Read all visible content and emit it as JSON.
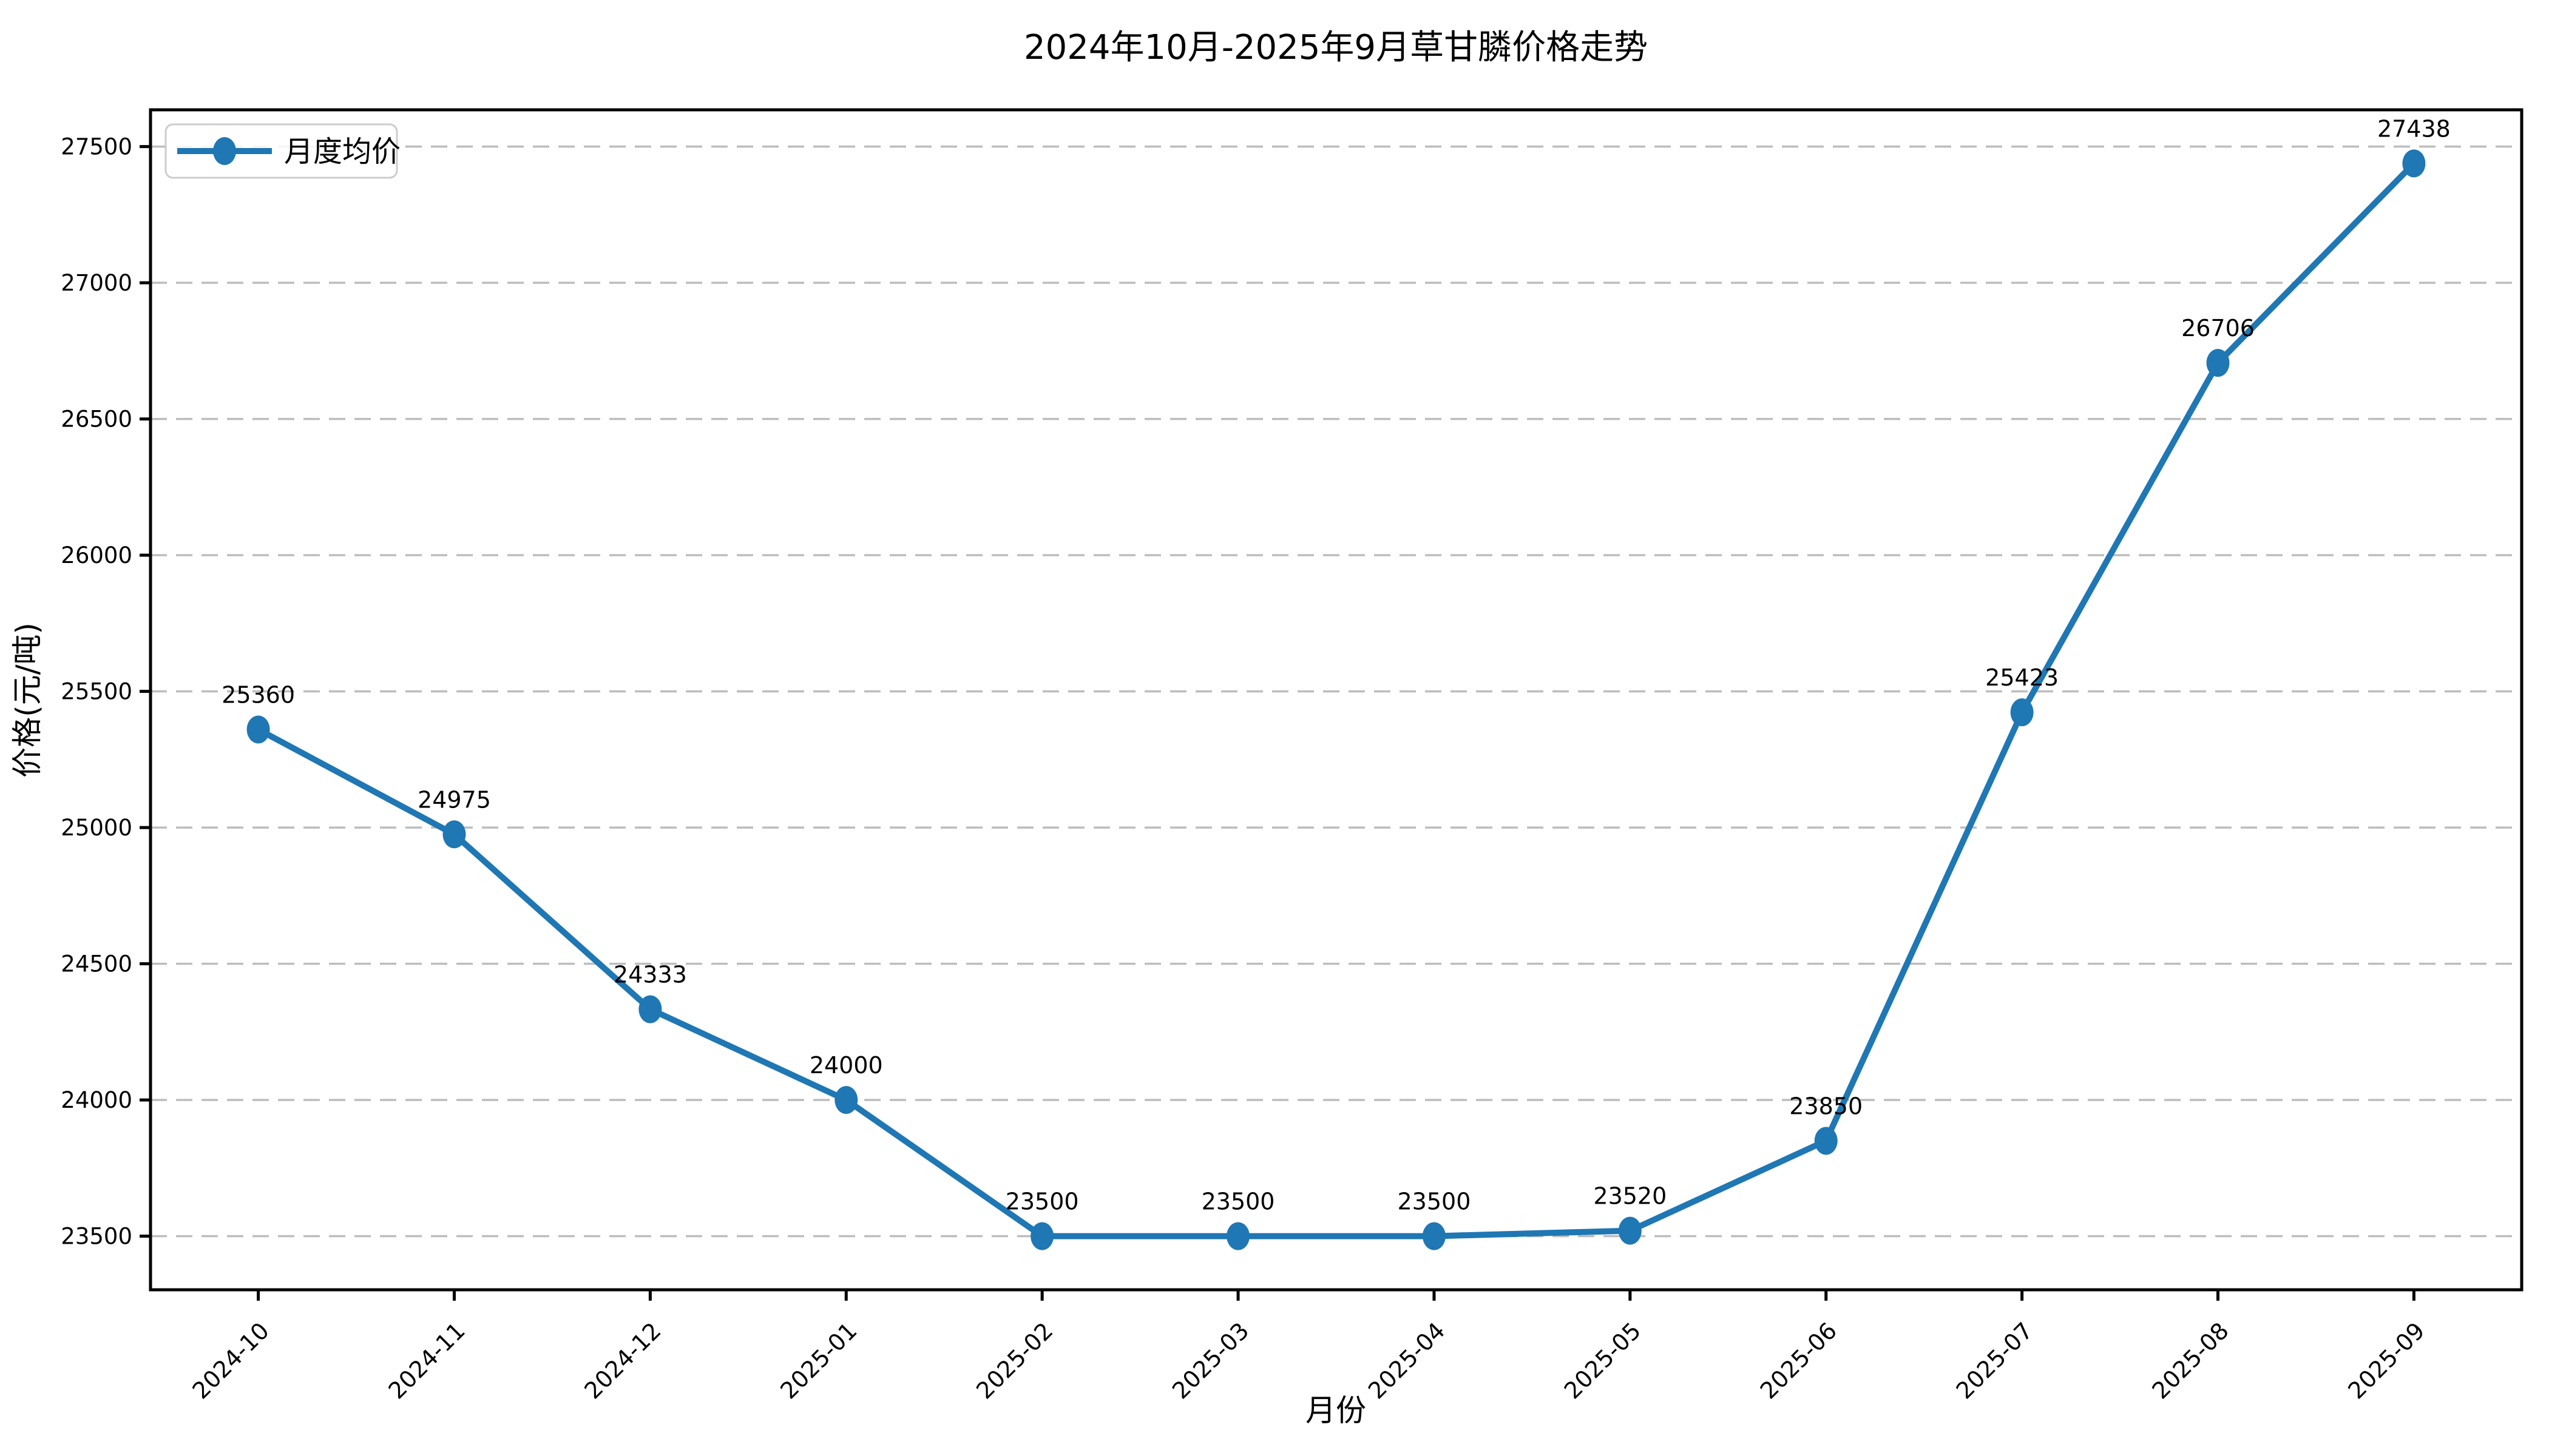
{
  "chart_data": {
    "type": "line",
    "title": "2024年10月-2025年9月草甘膦价格走势",
    "xlabel": "月份",
    "ylabel": "价格(元/吨)",
    "categories": [
      "2024-10",
      "2024-11",
      "2024-12",
      "2025-01",
      "2025-02",
      "2025-03",
      "2025-04",
      "2025-05",
      "2025-06",
      "2025-07",
      "2025-08",
      "2025-09"
    ],
    "series": [
      {
        "name": "月度均价",
        "values": [
          25360,
          24975,
          24333,
          24000,
          23500,
          23500,
          23500,
          23520,
          23850,
          25423,
          26706,
          27438
        ]
      }
    ],
    "point_labels": [
      "25360",
      "24975",
      "24333",
      "24000",
      "23500",
      "23500",
      "23500",
      "23520",
      "23850",
      "25423",
      "26706",
      "27438"
    ],
    "y_ticks": [
      23500,
      24000,
      24500,
      25000,
      25500,
      26000,
      26500,
      27000,
      27500
    ],
    "ylim": [
      23303,
      27635
    ],
    "x_tick_rotation": 45,
    "grid": "horizontal-dashed",
    "legend": {
      "position": "upper-left",
      "entries": [
        "月度均价"
      ]
    },
    "colors": {
      "line": "#1f77b4",
      "grid": "#bdbdbd",
      "spine": "#000000",
      "text": "#000000",
      "legend_border": "#cccccc",
      "background": "#ffffff"
    }
  }
}
